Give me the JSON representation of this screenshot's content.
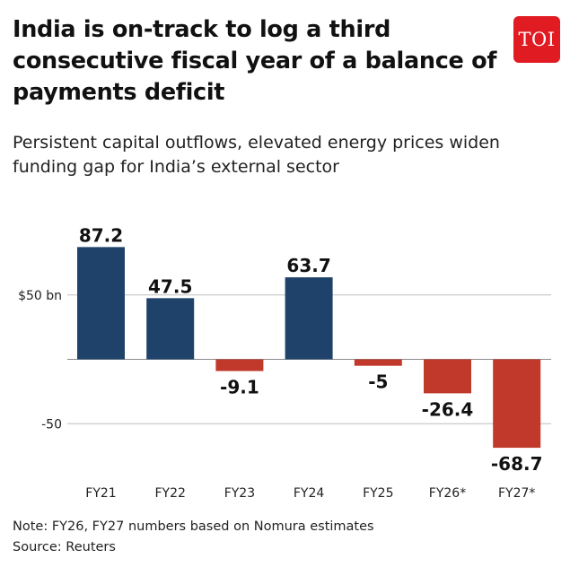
{
  "header": {
    "title": "India is on-track to log a third consecutive fiscal year of a balance of payments deficit",
    "subtitle": "Persistent capital outflows, elevated energy prices widen funding gap for India’s external sector",
    "logo_text": "TOI"
  },
  "footer": {
    "note": "Note: FY26, FY27 numbers based on Nomura estimates",
    "source": "Source: Reuters"
  },
  "colors": {
    "positive": "#1f426b",
    "negative": "#c0392b",
    "grid": "#bdbdbd",
    "brand": "#e11b22"
  },
  "chart_data": {
    "type": "bar",
    "categories": [
      "FY21",
      "FY22",
      "FY23",
      "FY24",
      "FY25",
      "FY26*",
      "FY27*"
    ],
    "values": [
      87.2,
      47.5,
      -9.1,
      63.7,
      -5,
      -26.4,
      -68.7
    ],
    "value_labels": [
      "87.2",
      "47.5",
      "-9.1",
      "63.7",
      "-5",
      "-26.4",
      "-68.7"
    ],
    "y_ticks": [
      {
        "value": 50,
        "label": "$50 bn"
      },
      {
        "value": 0,
        "label": ""
      },
      {
        "value": -50,
        "label": "-50"
      }
    ],
    "ylim": [
      -70,
      90
    ],
    "grid": true
  }
}
